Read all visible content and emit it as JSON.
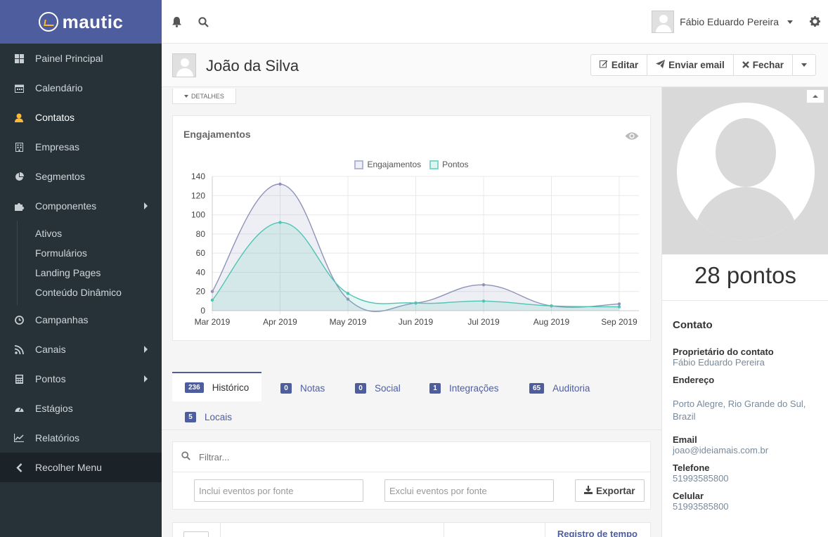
{
  "brand": {
    "name": "mautic"
  },
  "sidebar": {
    "items": [
      {
        "label": "Painel Principal",
        "icon": "dashboard-icon"
      },
      {
        "label": "Calendário",
        "icon": "calendar-icon"
      },
      {
        "label": "Contatos",
        "icon": "user-icon",
        "active": true
      },
      {
        "label": "Empresas",
        "icon": "building-icon"
      },
      {
        "label": "Segmentos",
        "icon": "pie-chart-icon"
      },
      {
        "label": "Componentes",
        "icon": "puzzle-icon",
        "submenu": true
      }
    ],
    "subitems": [
      "Ativos",
      "Formulários",
      "Landing Pages",
      "Conteúdo Dinâmico"
    ],
    "items2": [
      {
        "label": "Campanhas",
        "icon": "clock-icon"
      },
      {
        "label": "Canais",
        "icon": "rss-icon",
        "submenu": true
      },
      {
        "label": "Pontos",
        "icon": "calculator-icon",
        "submenu": true
      },
      {
        "label": "Estágios",
        "icon": "tachometer-icon"
      },
      {
        "label": "Relatórios",
        "icon": "line-chart-icon"
      }
    ],
    "collapse_label": "Recolher Menu"
  },
  "topbar": {
    "user_name": "Fábio Eduardo Pereira"
  },
  "page": {
    "title": "João da Silva",
    "buttons": {
      "edit": "Editar",
      "email": "Enviar email",
      "close": "Fechar"
    },
    "details_toggle": "DETALHES"
  },
  "engagement": {
    "title": "Engajamentos"
  },
  "chart_data": {
    "type": "area",
    "categories": [
      "Mar 2019",
      "Apr 2019",
      "May 2019",
      "Jun 2019",
      "Jul 2019",
      "Aug 2019",
      "Sep 2019"
    ],
    "series": [
      {
        "name": "Engajamentos",
        "values": [
          20,
          132,
          12,
          8,
          27,
          5,
          7
        ],
        "color": "#8e92b9"
      },
      {
        "name": "Pontos",
        "values": [
          11,
          92,
          18,
          8,
          10,
          5,
          4
        ],
        "color": "#4fc4b4"
      }
    ],
    "ylim": [
      0,
      140
    ],
    "yticks": [
      0,
      20,
      40,
      60,
      80,
      100,
      120,
      140
    ],
    "grid": true,
    "legend": "top-center"
  },
  "tabs": [
    {
      "count": "236",
      "label": "Histórico",
      "active": true
    },
    {
      "count": "0",
      "label": "Notas"
    },
    {
      "count": "0",
      "label": "Social"
    },
    {
      "count": "1",
      "label": "Integrações"
    },
    {
      "count": "65",
      "label": "Auditoria"
    },
    {
      "count": "5",
      "label": "Locais"
    }
  ],
  "filter": {
    "search_placeholder": "Filtrar...",
    "include_placeholder": "Inclui eventos por fonte",
    "exclude_placeholder": "Exclui eventos por fonte",
    "export_label": "Exportar"
  },
  "table": {
    "timestamp_header": "Registro de tempo"
  },
  "contact": {
    "points": "28 pontos",
    "section_title": "Contato",
    "owner_label": "Proprietário do contato",
    "owner_value": "Fábio Eduardo Pereira",
    "address_label": "Endereço",
    "address_value": "Porto Alegre, Rio Grande do Sul, Brazil",
    "email_label": "Email",
    "email_value": "joao@ideiamais.com.br",
    "phone_label": "Telefone",
    "phone_value": "51993585800",
    "mobile_label": "Celular",
    "mobile_value": "51993585800"
  },
  "colors": {
    "brand": "#4e5d9d",
    "sidebar": "#263238",
    "accent": "#fdb933"
  }
}
